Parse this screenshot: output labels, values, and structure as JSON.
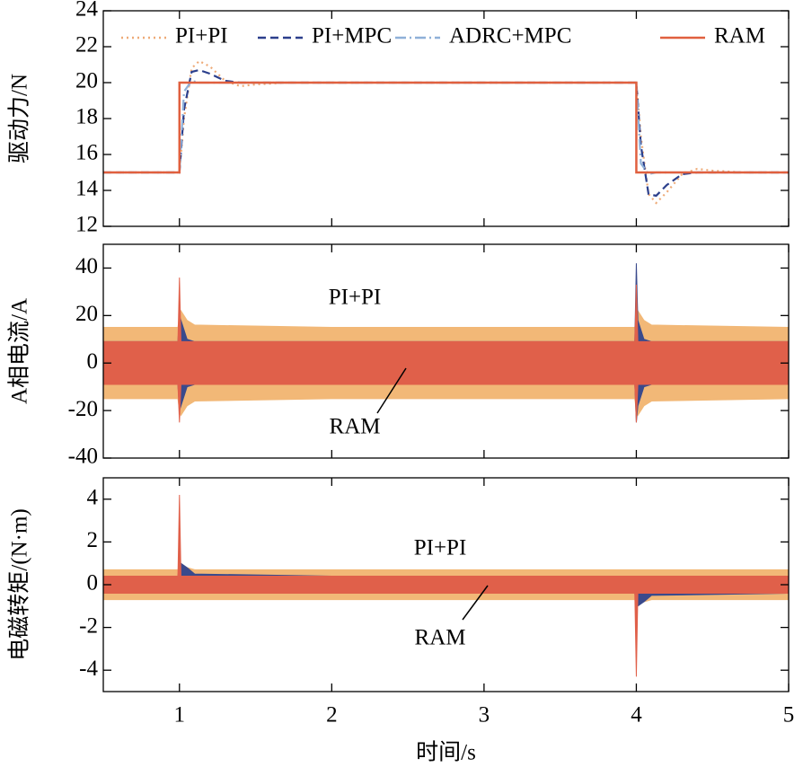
{
  "chart_data": [
    {
      "type": "line",
      "ylabel": "驱动力/N",
      "xlim": [
        0.5,
        5
      ],
      "xticks": [
        1,
        2,
        3,
        4,
        5
      ],
      "ylim": [
        12,
        24
      ],
      "yticks": [
        12,
        14,
        16,
        18,
        20,
        22,
        24
      ],
      "legend": "top",
      "series": [
        {
          "name": "PI+PI",
          "color": "#eeaa77",
          "dash": "dotted",
          "x": [
            0.5,
            1,
            1.03,
            1.08,
            1.13,
            1.2,
            1.3,
            1.4,
            1.5,
            1.7,
            4,
            4.03,
            4.08,
            4.13,
            4.2,
            4.3,
            4.4,
            4.5,
            4.7,
            5
          ],
          "values": [
            15,
            15,
            18,
            20.8,
            21.2,
            20.9,
            20.1,
            19.8,
            19.9,
            20,
            20,
            17,
            13.8,
            13.3,
            13.9,
            14.9,
            15.2,
            15.1,
            15,
            15
          ]
        },
        {
          "name": "PI+MPC",
          "color": "#2b3f8c",
          "dash": "dashed",
          "x": [
            0.5,
            1,
            1.03,
            1.08,
            1.13,
            1.2,
            1.3,
            1.4,
            1.5,
            1.7,
            4,
            4.03,
            4.08,
            4.13,
            4.2,
            4.3,
            4.4,
            4.5,
            4.7,
            5
          ],
          "values": [
            15,
            15,
            18.5,
            20.6,
            20.7,
            20.5,
            20.1,
            20,
            20,
            20,
            20,
            16.5,
            13.8,
            13.7,
            14.3,
            14.9,
            15,
            15,
            15,
            15
          ]
        },
        {
          "name": "ADRC+MPC",
          "color": "#8fb0d8",
          "dash": "dashdot",
          "x": [
            0.5,
            1,
            1.03,
            1.08,
            1.13,
            1.2,
            1.3,
            1.4,
            1.5,
            1.7,
            4,
            4.03,
            4.08,
            4.13,
            4.2,
            4.3,
            4.4,
            4.5,
            4.7,
            5
          ],
          "values": [
            15,
            15,
            19.5,
            20.1,
            20,
            20,
            20,
            20,
            20,
            20,
            20,
            15.5,
            14.9,
            15,
            15,
            15,
            15,
            15,
            15,
            15
          ]
        },
        {
          "name": "RAM",
          "color": "#e0603f",
          "dash": "solid",
          "x": [
            0.5,
            1,
            1,
            4,
            4,
            5
          ],
          "values": [
            15,
            15,
            20,
            20,
            15,
            15
          ]
        }
      ]
    },
    {
      "type": "band",
      "ylabel": "A相电流/A",
      "xlim": [
        0.5,
        5
      ],
      "xticks": [
        1,
        2,
        3,
        4,
        5
      ],
      "ylim": [
        -40,
        50
      ],
      "yticks": [
        -40,
        -20,
        0,
        20,
        40
      ],
      "annotations": [
        "PI+PI",
        "RAM"
      ],
      "x": [
        0.5,
        0.99,
        1.0,
        1.01,
        1.05,
        1.1,
        2,
        3,
        3.99,
        4.0,
        4.01,
        4.05,
        4.1,
        5
      ],
      "series": [
        {
          "name": "PI+PI",
          "color": "#f2b877",
          "upper": [
            15,
            15,
            20,
            22,
            18,
            16,
            15,
            15,
            15,
            20,
            22,
            18,
            16,
            15
          ],
          "lower": [
            -15,
            -15,
            -20,
            -22,
            -18,
            -16,
            -15,
            -15,
            -15,
            -20,
            -22,
            -18,
            -16,
            -15
          ]
        },
        {
          "name": "PI+MPC",
          "color": "#3a4a8c",
          "upper": [
            9,
            9,
            20,
            18,
            10,
            9,
            9,
            9,
            9,
            42,
            18,
            10,
            9,
            9
          ],
          "lower": [
            -9,
            -9,
            -20,
            -18,
            -10,
            -9,
            -9,
            -9,
            -9,
            -25,
            -18,
            -10,
            -9,
            -9
          ]
        },
        {
          "name": "RAM",
          "color": "#e0604a",
          "upper": [
            9,
            9,
            36,
            9,
            9,
            9,
            9,
            9,
            9,
            33,
            9,
            9,
            9,
            9
          ],
          "lower": [
            -9,
            -9,
            -25,
            -9,
            -9,
            -9,
            -9,
            -9,
            -9,
            -25,
            -9,
            -9,
            -9,
            -9
          ]
        }
      ]
    },
    {
      "type": "band",
      "ylabel": "电磁转矩/(N·m)",
      "xlabel": "时间/s",
      "xlim": [
        0.5,
        5
      ],
      "xticks": [
        1,
        2,
        3,
        4,
        5
      ],
      "ylim": [
        -5,
        5
      ],
      "yticks": [
        -4,
        -2,
        0,
        2,
        4
      ],
      "annotations": [
        "PI+PI",
        "RAM"
      ],
      "x": [
        0.5,
        0.99,
        1.0,
        1.01,
        1.05,
        1.1,
        2,
        3,
        3.99,
        4.0,
        4.01,
        4.05,
        4.1,
        5
      ],
      "series": [
        {
          "name": "PI+PI",
          "color": "#f2b877",
          "upper": [
            0.7,
            0.7,
            0.9,
            0.9,
            0.8,
            0.7,
            0.7,
            0.7,
            0.7,
            0.7,
            0.7,
            0.7,
            0.7,
            0.7
          ],
          "lower": [
            -0.7,
            -0.7,
            -0.7,
            -0.7,
            -0.7,
            -0.7,
            -0.7,
            -0.7,
            -0.7,
            -0.9,
            -0.9,
            -0.8,
            -0.7,
            -0.7
          ]
        },
        {
          "name": "PI+MPC",
          "color": "#3a4a8c",
          "upper": [
            0.4,
            0.4,
            1.0,
            1.0,
            0.8,
            0.5,
            0.4,
            0.4,
            0.4,
            0.4,
            0.4,
            0.4,
            0.4,
            0.4
          ],
          "lower": [
            -0.4,
            -0.4,
            -0.4,
            -0.4,
            -0.4,
            -0.4,
            -0.4,
            -0.4,
            -0.4,
            -1.0,
            -1.0,
            -0.8,
            -0.5,
            -0.4
          ]
        },
        {
          "name": "RAM",
          "color": "#e0604a",
          "upper": [
            0.4,
            0.4,
            4.2,
            0.4,
            0.4,
            0.4,
            0.4,
            0.4,
            0.4,
            0.4,
            0.4,
            0.4,
            0.4,
            0.4
          ],
          "lower": [
            -0.4,
            -0.4,
            -0.4,
            -0.4,
            -0.4,
            -0.4,
            -0.4,
            -0.4,
            -0.4,
            -4.3,
            -0.4,
            -0.4,
            -0.4,
            -0.4
          ]
        }
      ]
    }
  ]
}
